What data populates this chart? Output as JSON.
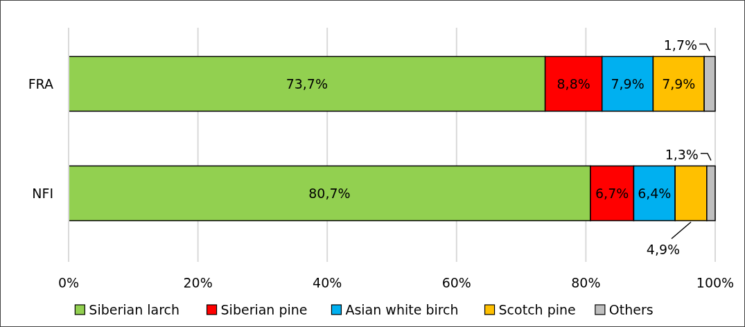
{
  "chart_data": {
    "type": "bar",
    "orientation": "horizontal",
    "stacked": true,
    "categories": [
      "FRA",
      "NFI"
    ],
    "series": [
      {
        "name": "Siberian larch",
        "color": "#92d050",
        "values": [
          73.7,
          80.7
        ],
        "value_labels": [
          "73,7%",
          "80,7%"
        ]
      },
      {
        "name": "Siberian pine",
        "color": "#ff0000",
        "values": [
          8.8,
          6.7
        ],
        "value_labels": [
          "8,8%",
          "6,7%"
        ]
      },
      {
        "name": "Asian white birch",
        "color": "#00b0f0",
        "values": [
          7.9,
          6.4
        ],
        "value_labels": [
          "7,9%",
          "6,4%"
        ]
      },
      {
        "name": "Scotch pine",
        "color": "#ffc000",
        "values": [
          7.9,
          4.9
        ],
        "value_labels": [
          "7,9%",
          "4,9%"
        ]
      },
      {
        "name": "Others",
        "color": "#bfbfbf",
        "values": [
          1.7,
          1.3
        ],
        "value_labels": [
          "1,7%",
          "1,3%"
        ]
      }
    ],
    "xlim": [
      0,
      100
    ],
    "xticks": [
      {
        "value": 0,
        "label": "0%"
      },
      {
        "value": 20,
        "label": "20%"
      },
      {
        "value": 40,
        "label": "40%"
      },
      {
        "value": 60,
        "label": "60%"
      },
      {
        "value": 80,
        "label": "80%"
      },
      {
        "value": 100,
        "label": "100%"
      }
    ],
    "grid": "x",
    "legend": "bottom"
  }
}
